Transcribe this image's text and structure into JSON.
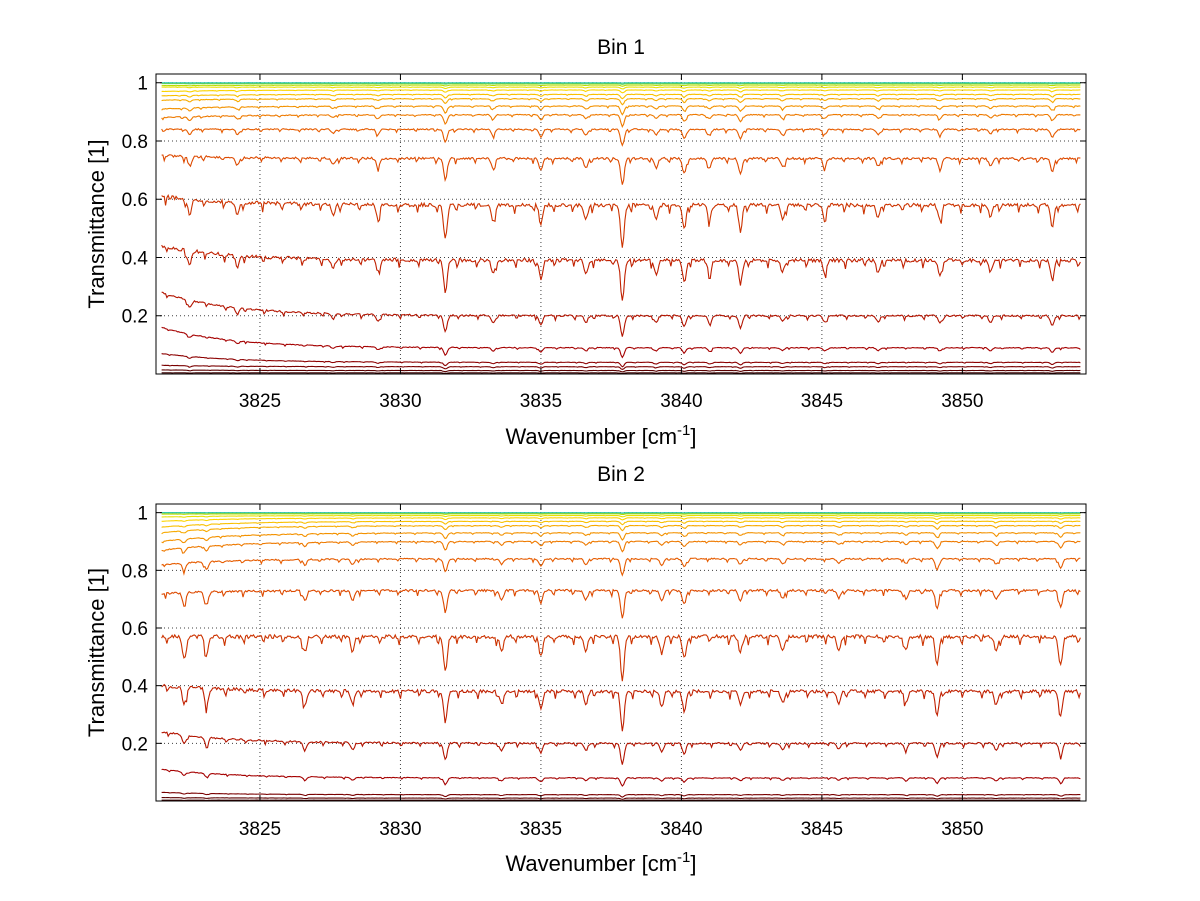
{
  "chart_data": [
    {
      "type": "line",
      "title": "Bin 1",
      "xlabel": "Wavenumber [cm",
      "xlabel_sup": "-1",
      "xlabel_suffix": "]",
      "ylabel": "Transmittance [1]",
      "xlim": [
        3821.3,
        3854.4
      ],
      "ylim": [
        0,
        1.03
      ],
      "xticks": [
        3825,
        3830,
        3835,
        3840,
        3845,
        3850
      ],
      "yticks": [
        0.2,
        0.4,
        0.6,
        0.8,
        1
      ],
      "ytick_labels": [
        "0.2",
        "0.4",
        "0.6",
        "0.8",
        "1"
      ],
      "grid": true,
      "x_range": [
        3821.5,
        3854.2
      ],
      "absorption_lines": [
        {
          "x": 3822.5,
          "depth": 0.35
        },
        {
          "x": 3824.2,
          "depth": 0.3
        },
        {
          "x": 3827.6,
          "depth": 0.25
        },
        {
          "x": 3829.2,
          "depth": 0.3
        },
        {
          "x": 3831.6,
          "depth": 0.8
        },
        {
          "x": 3833.3,
          "depth": 0.35
        },
        {
          "x": 3835.0,
          "depth": 0.45
        },
        {
          "x": 3836.6,
          "depth": 0.35
        },
        {
          "x": 3837.9,
          "depth": 1.0
        },
        {
          "x": 3839.1,
          "depth": 0.35
        },
        {
          "x": 3840.1,
          "depth": 0.55
        },
        {
          "x": 3841.0,
          "depth": 0.35
        },
        {
          "x": 3842.1,
          "depth": 0.6
        },
        {
          "x": 3843.6,
          "depth": 0.3
        },
        {
          "x": 3845.1,
          "depth": 0.3
        },
        {
          "x": 3847.0,
          "depth": 0.3
        },
        {
          "x": 3849.2,
          "depth": 0.35
        },
        {
          "x": 3851.0,
          "depth": 0.3
        },
        {
          "x": 3853.2,
          "depth": 0.5
        }
      ],
      "series": [
        {
          "level": 0.004,
          "start": 0.004,
          "color": "#3c0000"
        },
        {
          "level": 0.012,
          "start": 0.014,
          "color": "#5a0000"
        },
        {
          "level": 0.025,
          "start": 0.03,
          "color": "#7a0000"
        },
        {
          "level": 0.04,
          "start": 0.07,
          "color": "#8c0000"
        },
        {
          "level": 0.09,
          "start": 0.16,
          "color": "#a50000"
        },
        {
          "level": 0.2,
          "start": 0.28,
          "color": "#b31400"
        },
        {
          "level": 0.39,
          "start": 0.44,
          "color": "#c02000"
        },
        {
          "level": 0.58,
          "start": 0.61,
          "color": "#cc3300"
        },
        {
          "level": 0.74,
          "start": 0.75,
          "color": "#dd4a00"
        },
        {
          "level": 0.84,
          "start": 0.84,
          "color": "#e65c00"
        },
        {
          "level": 0.89,
          "start": 0.88,
          "color": "#ee7a00"
        },
        {
          "level": 0.92,
          "start": 0.91,
          "color": "#f39200"
        },
        {
          "level": 0.945,
          "start": 0.94,
          "color": "#f7aa00"
        },
        {
          "level": 0.96,
          "start": 0.955,
          "color": "#f9c000"
        },
        {
          "level": 0.975,
          "start": 0.97,
          "color": "#fbd400"
        },
        {
          "level": 0.985,
          "start": 0.985,
          "color": "#e8e000"
        },
        {
          "level": 0.992,
          "start": 0.99,
          "color": "#b8dc00"
        },
        {
          "level": 0.997,
          "start": 0.997,
          "color": "#5fd24a"
        },
        {
          "level": 1.0,
          "start": 1.0,
          "color": "#2ec8b0"
        }
      ]
    },
    {
      "type": "line",
      "title": "Bin 2",
      "xlabel": "Wavenumber [cm",
      "xlabel_sup": "-1",
      "xlabel_suffix": "]",
      "ylabel": "Transmittance [1]",
      "xlim": [
        3821.3,
        3854.4
      ],
      "ylim": [
        0,
        1.03
      ],
      "xticks": [
        3825,
        3830,
        3835,
        3840,
        3845,
        3850
      ],
      "yticks": [
        0.2,
        0.4,
        0.6,
        0.8,
        1
      ],
      "ytick_labels": [
        "0.2",
        "0.4",
        "0.6",
        "0.8",
        "1"
      ],
      "grid": true,
      "x_range": [
        3821.5,
        3854.2
      ],
      "absorption_lines": [
        {
          "x": 3822.3,
          "depth": 0.45
        },
        {
          "x": 3823.1,
          "depth": 0.45
        },
        {
          "x": 3826.6,
          "depth": 0.35
        },
        {
          "x": 3828.3,
          "depth": 0.35
        },
        {
          "x": 3831.6,
          "depth": 0.8
        },
        {
          "x": 3833.6,
          "depth": 0.35
        },
        {
          "x": 3835.0,
          "depth": 0.45
        },
        {
          "x": 3836.6,
          "depth": 0.35
        },
        {
          "x": 3837.9,
          "depth": 1.0
        },
        {
          "x": 3839.3,
          "depth": 0.4
        },
        {
          "x": 3840.1,
          "depth": 0.5
        },
        {
          "x": 3842.1,
          "depth": 0.35
        },
        {
          "x": 3843.6,
          "depth": 0.3
        },
        {
          "x": 3845.6,
          "depth": 0.3
        },
        {
          "x": 3848.0,
          "depth": 0.3
        },
        {
          "x": 3849.1,
          "depth": 0.65
        },
        {
          "x": 3851.2,
          "depth": 0.35
        },
        {
          "x": 3853.5,
          "depth": 0.6
        }
      ],
      "series": [
        {
          "level": 0.003,
          "start": 0.003,
          "color": "#3c0000"
        },
        {
          "level": 0.01,
          "start": 0.012,
          "color": "#5a0000"
        },
        {
          "level": 0.022,
          "start": 0.03,
          "color": "#7a0000"
        },
        {
          "level": 0.08,
          "start": 0.11,
          "color": "#a50000"
        },
        {
          "level": 0.2,
          "start": 0.24,
          "color": "#b31400"
        },
        {
          "level": 0.38,
          "start": 0.4,
          "color": "#c02000"
        },
        {
          "level": 0.57,
          "start": 0.57,
          "color": "#cc3300"
        },
        {
          "level": 0.73,
          "start": 0.72,
          "color": "#dd4a00"
        },
        {
          "level": 0.84,
          "start": 0.82,
          "color": "#e65c00"
        },
        {
          "level": 0.9,
          "start": 0.87,
          "color": "#ee7a00"
        },
        {
          "level": 0.93,
          "start": 0.9,
          "color": "#f39200"
        },
        {
          "level": 0.955,
          "start": 0.93,
          "color": "#f7aa00"
        },
        {
          "level": 0.97,
          "start": 0.95,
          "color": "#f9c000"
        },
        {
          "level": 0.982,
          "start": 0.97,
          "color": "#fbd400"
        },
        {
          "level": 0.99,
          "start": 0.985,
          "color": "#e8e000"
        },
        {
          "level": 0.996,
          "start": 0.995,
          "color": "#b8dc00"
        },
        {
          "level": 0.999,
          "start": 1.0,
          "color": "#5fd24a"
        },
        {
          "level": 1.0,
          "start": 1.0,
          "color": "#2ec8b0"
        }
      ]
    }
  ]
}
